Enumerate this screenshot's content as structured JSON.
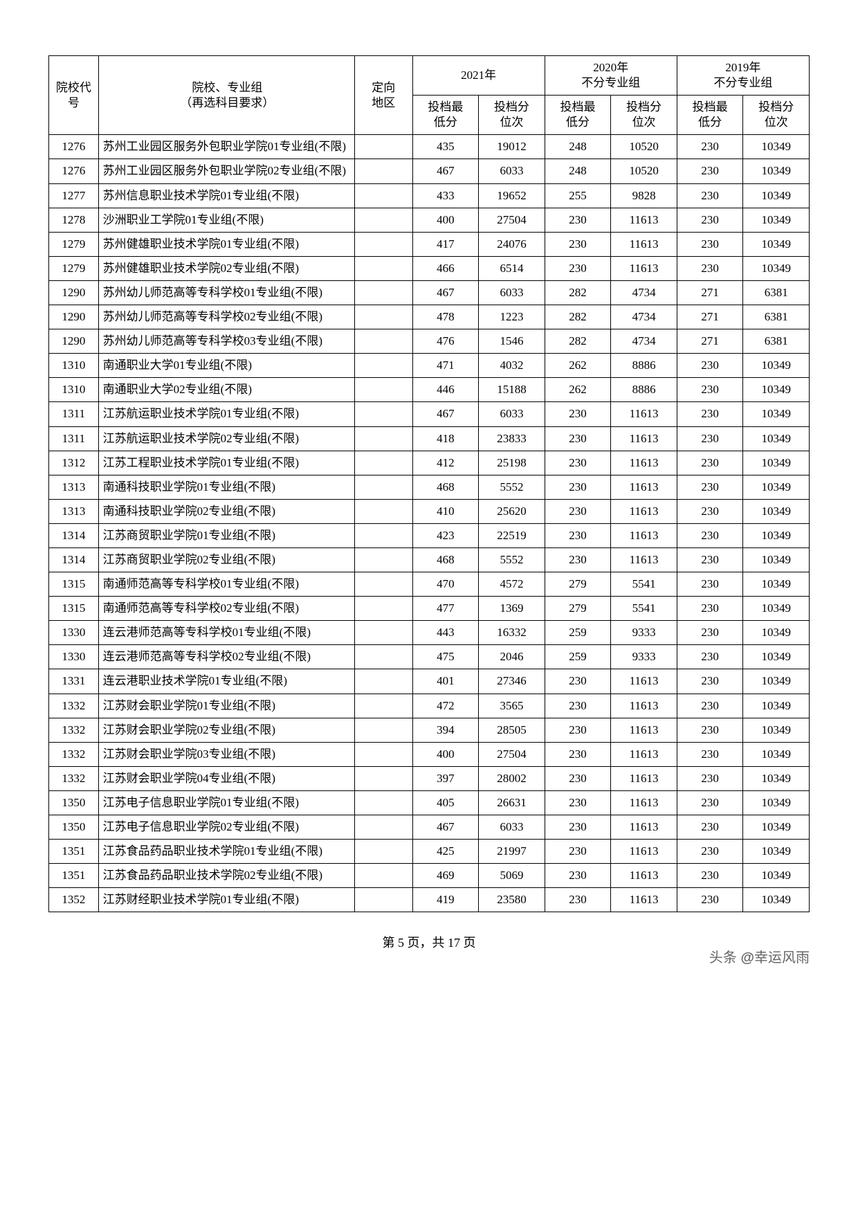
{
  "header": {
    "code": "院校代号",
    "name_l1": "院校、专业组",
    "name_l2": "（再选科目要求）",
    "area_l1": "定向",
    "area_l2": "地区",
    "y2021": "2021年",
    "y2020_l1": "2020年",
    "y2020_l2": "不分专业组",
    "y2019_l1": "2019年",
    "y2019_l2": "不分专业组",
    "score_l1": "投档最",
    "score_l2": "低分",
    "rank_l1": "投档分",
    "rank_l2": "位次"
  },
  "rows": [
    {
      "code": "1276",
      "name": "苏州工业园区服务外包职业学院01专业组(不限)",
      "area": "",
      "s21": "435",
      "r21": "19012",
      "s20": "248",
      "r20": "10520",
      "s19": "230",
      "r19": "10349"
    },
    {
      "code": "1276",
      "name": "苏州工业园区服务外包职业学院02专业组(不限)",
      "area": "",
      "s21": "467",
      "r21": "6033",
      "s20": "248",
      "r20": "10520",
      "s19": "230",
      "r19": "10349"
    },
    {
      "code": "1277",
      "name": "苏州信息职业技术学院01专业组(不限)",
      "area": "",
      "s21": "433",
      "r21": "19652",
      "s20": "255",
      "r20": "9828",
      "s19": "230",
      "r19": "10349"
    },
    {
      "code": "1278",
      "name": "沙洲职业工学院01专业组(不限)",
      "area": "",
      "s21": "400",
      "r21": "27504",
      "s20": "230",
      "r20": "11613",
      "s19": "230",
      "r19": "10349"
    },
    {
      "code": "1279",
      "name": "苏州健雄职业技术学院01专业组(不限)",
      "area": "",
      "s21": "417",
      "r21": "24076",
      "s20": "230",
      "r20": "11613",
      "s19": "230",
      "r19": "10349"
    },
    {
      "code": "1279",
      "name": "苏州健雄职业技术学院02专业组(不限)",
      "area": "",
      "s21": "466",
      "r21": "6514",
      "s20": "230",
      "r20": "11613",
      "s19": "230",
      "r19": "10349"
    },
    {
      "code": "1290",
      "name": "苏州幼儿师范高等专科学校01专业组(不限)",
      "area": "",
      "s21": "467",
      "r21": "6033",
      "s20": "282",
      "r20": "4734",
      "s19": "271",
      "r19": "6381"
    },
    {
      "code": "1290",
      "name": "苏州幼儿师范高等专科学校02专业组(不限)",
      "area": "",
      "s21": "478",
      "r21": "1223",
      "s20": "282",
      "r20": "4734",
      "s19": "271",
      "r19": "6381"
    },
    {
      "code": "1290",
      "name": "苏州幼儿师范高等专科学校03专业组(不限)",
      "area": "",
      "s21": "476",
      "r21": "1546",
      "s20": "282",
      "r20": "4734",
      "s19": "271",
      "r19": "6381"
    },
    {
      "code": "1310",
      "name": "南通职业大学01专业组(不限)",
      "area": "",
      "s21": "471",
      "r21": "4032",
      "s20": "262",
      "r20": "8886",
      "s19": "230",
      "r19": "10349"
    },
    {
      "code": "1310",
      "name": "南通职业大学02专业组(不限)",
      "area": "",
      "s21": "446",
      "r21": "15188",
      "s20": "262",
      "r20": "8886",
      "s19": "230",
      "r19": "10349"
    },
    {
      "code": "1311",
      "name": "江苏航运职业技术学院01专业组(不限)",
      "area": "",
      "s21": "467",
      "r21": "6033",
      "s20": "230",
      "r20": "11613",
      "s19": "230",
      "r19": "10349"
    },
    {
      "code": "1311",
      "name": "江苏航运职业技术学院02专业组(不限)",
      "area": "",
      "s21": "418",
      "r21": "23833",
      "s20": "230",
      "r20": "11613",
      "s19": "230",
      "r19": "10349"
    },
    {
      "code": "1312",
      "name": "江苏工程职业技术学院01专业组(不限)",
      "area": "",
      "s21": "412",
      "r21": "25198",
      "s20": "230",
      "r20": "11613",
      "s19": "230",
      "r19": "10349"
    },
    {
      "code": "1313",
      "name": "南通科技职业学院01专业组(不限)",
      "area": "",
      "s21": "468",
      "r21": "5552",
      "s20": "230",
      "r20": "11613",
      "s19": "230",
      "r19": "10349"
    },
    {
      "code": "1313",
      "name": "南通科技职业学院02专业组(不限)",
      "area": "",
      "s21": "410",
      "r21": "25620",
      "s20": "230",
      "r20": "11613",
      "s19": "230",
      "r19": "10349"
    },
    {
      "code": "1314",
      "name": "江苏商贸职业学院01专业组(不限)",
      "area": "",
      "s21": "423",
      "r21": "22519",
      "s20": "230",
      "r20": "11613",
      "s19": "230",
      "r19": "10349"
    },
    {
      "code": "1314",
      "name": "江苏商贸职业学院02专业组(不限)",
      "area": "",
      "s21": "468",
      "r21": "5552",
      "s20": "230",
      "r20": "11613",
      "s19": "230",
      "r19": "10349"
    },
    {
      "code": "1315",
      "name": "南通师范高等专科学校01专业组(不限)",
      "area": "",
      "s21": "470",
      "r21": "4572",
      "s20": "279",
      "r20": "5541",
      "s19": "230",
      "r19": "10349"
    },
    {
      "code": "1315",
      "name": "南通师范高等专科学校02专业组(不限)",
      "area": "",
      "s21": "477",
      "r21": "1369",
      "s20": "279",
      "r20": "5541",
      "s19": "230",
      "r19": "10349"
    },
    {
      "code": "1330",
      "name": "连云港师范高等专科学校01专业组(不限)",
      "area": "",
      "s21": "443",
      "r21": "16332",
      "s20": "259",
      "r20": "9333",
      "s19": "230",
      "r19": "10349"
    },
    {
      "code": "1330",
      "name": "连云港师范高等专科学校02专业组(不限)",
      "area": "",
      "s21": "475",
      "r21": "2046",
      "s20": "259",
      "r20": "9333",
      "s19": "230",
      "r19": "10349"
    },
    {
      "code": "1331",
      "name": "连云港职业技术学院01专业组(不限)",
      "area": "",
      "s21": "401",
      "r21": "27346",
      "s20": "230",
      "r20": "11613",
      "s19": "230",
      "r19": "10349"
    },
    {
      "code": "1332",
      "name": "江苏财会职业学院01专业组(不限)",
      "area": "",
      "s21": "472",
      "r21": "3565",
      "s20": "230",
      "r20": "11613",
      "s19": "230",
      "r19": "10349"
    },
    {
      "code": "1332",
      "name": "江苏财会职业学院02专业组(不限)",
      "area": "",
      "s21": "394",
      "r21": "28505",
      "s20": "230",
      "r20": "11613",
      "s19": "230",
      "r19": "10349"
    },
    {
      "code": "1332",
      "name": "江苏财会职业学院03专业组(不限)",
      "area": "",
      "s21": "400",
      "r21": "27504",
      "s20": "230",
      "r20": "11613",
      "s19": "230",
      "r19": "10349"
    },
    {
      "code": "1332",
      "name": "江苏财会职业学院04专业组(不限)",
      "area": "",
      "s21": "397",
      "r21": "28002",
      "s20": "230",
      "r20": "11613",
      "s19": "230",
      "r19": "10349"
    },
    {
      "code": "1350",
      "name": "江苏电子信息职业学院01专业组(不限)",
      "area": "",
      "s21": "405",
      "r21": "26631",
      "s20": "230",
      "r20": "11613",
      "s19": "230",
      "r19": "10349"
    },
    {
      "code": "1350",
      "name": "江苏电子信息职业学院02专业组(不限)",
      "area": "",
      "s21": "467",
      "r21": "6033",
      "s20": "230",
      "r20": "11613",
      "s19": "230",
      "r19": "10349"
    },
    {
      "code": "1351",
      "name": "江苏食品药品职业技术学院01专业组(不限)",
      "area": "",
      "s21": "425",
      "r21": "21997",
      "s20": "230",
      "r20": "11613",
      "s19": "230",
      "r19": "10349"
    },
    {
      "code": "1351",
      "name": "江苏食品药品职业技术学院02专业组(不限)",
      "area": "",
      "s21": "469",
      "r21": "5069",
      "s20": "230",
      "r20": "11613",
      "s19": "230",
      "r19": "10349"
    },
    {
      "code": "1352",
      "name": "江苏财经职业技术学院01专业组(不限)",
      "area": "",
      "s21": "419",
      "r21": "23580",
      "s20": "230",
      "r20": "11613",
      "s19": "230",
      "r19": "10349"
    }
  ],
  "footer": {
    "page_label_prefix": "第 ",
    "current": "5",
    "page_label_mid": " 页，共 ",
    "total": "17",
    "page_label_suffix": " 页"
  },
  "watermark": {
    "prefix": "头条 ",
    "at": "@",
    "name": "幸运风雨"
  }
}
